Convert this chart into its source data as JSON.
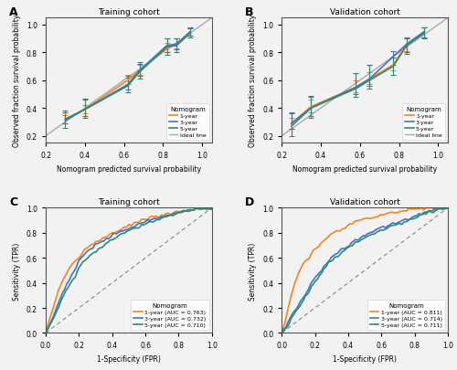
{
  "panel_A": {
    "title": "Training cohort",
    "xlabel": "Nomogram predicted survival probability",
    "ylabel": "Observed fraction survival probability",
    "xlim": [
      0.2,
      1.05
    ],
    "ylim": [
      0.15,
      1.05
    ],
    "xticks": [
      0.2,
      0.4,
      0.6,
      0.8,
      1.0
    ],
    "yticks": [
      0.2,
      0.4,
      0.6,
      0.8,
      1.0
    ],
    "year1_x": [
      0.3,
      0.4,
      0.62,
      0.68,
      0.82,
      0.87,
      0.94
    ],
    "year1_y": [
      0.32,
      0.39,
      0.6,
      0.67,
      0.83,
      0.86,
      0.95
    ],
    "year1_yerr_lo": [
      0.03,
      0.03,
      0.03,
      0.03,
      0.03,
      0.03,
      0.03
    ],
    "year1_yerr_hi": [
      0.03,
      0.03,
      0.04,
      0.04,
      0.04,
      0.04,
      0.03
    ],
    "year3_x": [
      0.3,
      0.4,
      0.62,
      0.68,
      0.82,
      0.87,
      0.94
    ],
    "year3_y": [
      0.32,
      0.39,
      0.57,
      0.67,
      0.85,
      0.86,
      0.95
    ],
    "year3_yerr_lo": [
      0.03,
      0.05,
      0.04,
      0.04,
      0.05,
      0.04,
      0.03
    ],
    "year3_yerr_hi": [
      0.05,
      0.07,
      0.05,
      0.05,
      0.05,
      0.04,
      0.03
    ],
    "year5_x": [
      0.3,
      0.4,
      0.62,
      0.68,
      0.82,
      0.87,
      0.94
    ],
    "year5_y": [
      0.31,
      0.39,
      0.56,
      0.66,
      0.84,
      0.85,
      0.94
    ],
    "year5_yerr_lo": [
      0.05,
      0.06,
      0.05,
      0.05,
      0.06,
      0.05,
      0.03
    ],
    "year5_yerr_hi": [
      0.07,
      0.08,
      0.07,
      0.07,
      0.06,
      0.05,
      0.03
    ]
  },
  "panel_B": {
    "title": "Validation cohort",
    "xlabel": "Nomogram predicted survival probability",
    "ylabel": "Observed fraction survival probability",
    "xlim": [
      0.2,
      1.05
    ],
    "ylim": [
      0.15,
      1.05
    ],
    "xticks": [
      0.2,
      0.4,
      0.6,
      0.8,
      1.0
    ],
    "yticks": [
      0.2,
      0.4,
      0.6,
      0.8,
      1.0
    ],
    "year1_x": [
      0.25,
      0.35,
      0.58,
      0.65,
      0.77,
      0.84,
      0.93
    ],
    "year1_y": [
      0.29,
      0.41,
      0.55,
      0.61,
      0.71,
      0.86,
      0.95
    ],
    "year1_yerr_lo": [
      0.04,
      0.04,
      0.04,
      0.04,
      0.04,
      0.05,
      0.04
    ],
    "year1_yerr_hi": [
      0.04,
      0.05,
      0.05,
      0.05,
      0.05,
      0.05,
      0.03
    ],
    "year3_x": [
      0.25,
      0.35,
      0.58,
      0.65,
      0.77,
      0.84,
      0.93
    ],
    "year3_y": [
      0.29,
      0.4,
      0.55,
      0.61,
      0.77,
      0.86,
      0.95
    ],
    "year3_yerr_lo": [
      0.04,
      0.06,
      0.05,
      0.05,
      0.06,
      0.06,
      0.04
    ],
    "year3_yerr_hi": [
      0.07,
      0.08,
      0.1,
      0.1,
      0.04,
      0.05,
      0.03
    ],
    "year5_x": [
      0.25,
      0.35,
      0.58,
      0.65,
      0.77,
      0.84,
      0.93
    ],
    "year5_y": [
      0.27,
      0.4,
      0.54,
      0.6,
      0.7,
      0.85,
      0.94
    ],
    "year5_yerr_lo": [
      0.07,
      0.07,
      0.06,
      0.06,
      0.06,
      0.06,
      0.04
    ],
    "year5_yerr_hi": [
      0.1,
      0.09,
      0.11,
      0.11,
      0.06,
      0.05,
      0.04
    ]
  },
  "panel_C": {
    "title": "Training cohort",
    "xlabel": "1-Specificity (FPR)",
    "ylabel": "Sensitivity (TPR)",
    "auc_1year": 0.763,
    "auc_3year": 0.732,
    "auc_5year": 0.71,
    "roc1_fpr": [
      0.0,
      0.02,
      0.05,
      0.08,
      0.12,
      0.16,
      0.18,
      0.2,
      0.22,
      0.25,
      0.3,
      0.35,
      0.4,
      0.5,
      0.6,
      0.7,
      0.8,
      0.9,
      1.0
    ],
    "roc1_tpr": [
      0.0,
      0.1,
      0.22,
      0.35,
      0.46,
      0.55,
      0.58,
      0.6,
      0.65,
      0.68,
      0.72,
      0.76,
      0.8,
      0.86,
      0.91,
      0.94,
      0.97,
      0.99,
      1.0
    ],
    "roc3_fpr": [
      0.0,
      0.02,
      0.05,
      0.08,
      0.12,
      0.16,
      0.18,
      0.2,
      0.22,
      0.25,
      0.3,
      0.35,
      0.4,
      0.5,
      0.6,
      0.7,
      0.8,
      0.9,
      1.0
    ],
    "roc3_tpr": [
      0.0,
      0.06,
      0.15,
      0.25,
      0.37,
      0.47,
      0.52,
      0.58,
      0.61,
      0.65,
      0.7,
      0.74,
      0.78,
      0.84,
      0.89,
      0.93,
      0.96,
      0.99,
      1.0
    ],
    "roc5_fpr": [
      0.0,
      0.02,
      0.05,
      0.08,
      0.12,
      0.16,
      0.18,
      0.2,
      0.22,
      0.25,
      0.3,
      0.35,
      0.4,
      0.5,
      0.6,
      0.7,
      0.8,
      0.9,
      1.0
    ],
    "roc5_tpr": [
      0.0,
      0.05,
      0.12,
      0.22,
      0.33,
      0.42,
      0.46,
      0.52,
      0.56,
      0.6,
      0.66,
      0.7,
      0.75,
      0.82,
      0.87,
      0.92,
      0.96,
      0.99,
      1.0
    ]
  },
  "panel_D": {
    "title": "Validation cohort",
    "xlabel": "1-Specificity (FPR)",
    "ylabel": "Sensitivity (TPR)",
    "auc_1year": 0.811,
    "auc_3year": 0.714,
    "auc_5year": 0.711,
    "roc1_fpr": [
      0.0,
      0.02,
      0.04,
      0.06,
      0.08,
      0.1,
      0.13,
      0.16,
      0.2,
      0.25,
      0.3,
      0.4,
      0.5,
      0.6,
      0.7,
      0.8,
      0.9,
      1.0
    ],
    "roc1_tpr": [
      0.0,
      0.08,
      0.2,
      0.32,
      0.4,
      0.48,
      0.55,
      0.6,
      0.67,
      0.73,
      0.79,
      0.86,
      0.91,
      0.94,
      0.97,
      0.99,
      1.0,
      1.0
    ],
    "roc3_fpr": [
      0.0,
      0.02,
      0.04,
      0.06,
      0.1,
      0.15,
      0.18,
      0.22,
      0.25,
      0.3,
      0.4,
      0.5,
      0.6,
      0.7,
      0.8,
      0.9,
      1.0
    ],
    "roc3_tpr": [
      0.0,
      0.04,
      0.09,
      0.14,
      0.22,
      0.32,
      0.4,
      0.47,
      0.52,
      0.6,
      0.7,
      0.78,
      0.84,
      0.88,
      0.93,
      0.98,
      1.0
    ],
    "roc5_fpr": [
      0.0,
      0.02,
      0.04,
      0.06,
      0.1,
      0.15,
      0.18,
      0.22,
      0.25,
      0.3,
      0.4,
      0.5,
      0.6,
      0.7,
      0.8,
      0.9,
      1.0
    ],
    "roc5_tpr": [
      0.0,
      0.03,
      0.07,
      0.12,
      0.2,
      0.3,
      0.37,
      0.44,
      0.5,
      0.58,
      0.68,
      0.76,
      0.82,
      0.87,
      0.92,
      0.97,
      1.0
    ]
  },
  "colors": {
    "year1": "#F4841E",
    "year3": "#4472C4",
    "year5": "#2D8B70",
    "ideal": "#AAAAAA",
    "diagonal": "#888888"
  },
  "legend_title": "Nomogram",
  "legend_labels": [
    "1-year",
    "3-year",
    "5-year",
    "Ideal line"
  ],
  "bg_color": "#F2F2F2"
}
